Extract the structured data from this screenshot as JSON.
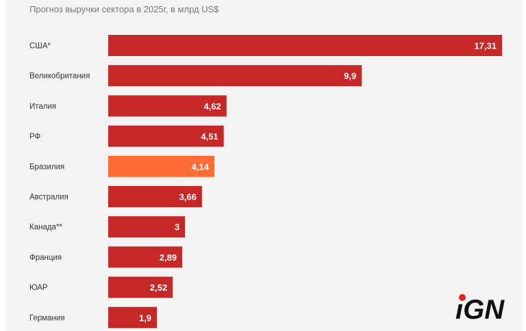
{
  "chart_data": {
    "type": "bar",
    "orientation": "horizontal",
    "title": "Прогноз выручки сектора в 2025г, в млрд US$",
    "categories": [
      "США*",
      "Великобритания",
      "Италия",
      "РФ",
      "Бразилия",
      "Австралия",
      "Канада**",
      "Франция",
      "ЮАР",
      "Германия"
    ],
    "values": [
      17.31,
      9.9,
      4.62,
      4.51,
      4.14,
      3.66,
      3,
      2.89,
      2.52,
      1.9
    ],
    "labels": [
      "17,31",
      "9,9",
      "4,62",
      "4,51",
      "4,14",
      "3,66",
      "3",
      "2,89",
      "2,52",
      "1,9"
    ],
    "highlight_index": 4,
    "colors": {
      "bar": "#c62828",
      "highlight": "#ff6b35"
    },
    "xlabel": "",
    "ylabel": "",
    "grid": false
  },
  "logo": {
    "text": "iGN",
    "dot_color": "#e52222"
  }
}
